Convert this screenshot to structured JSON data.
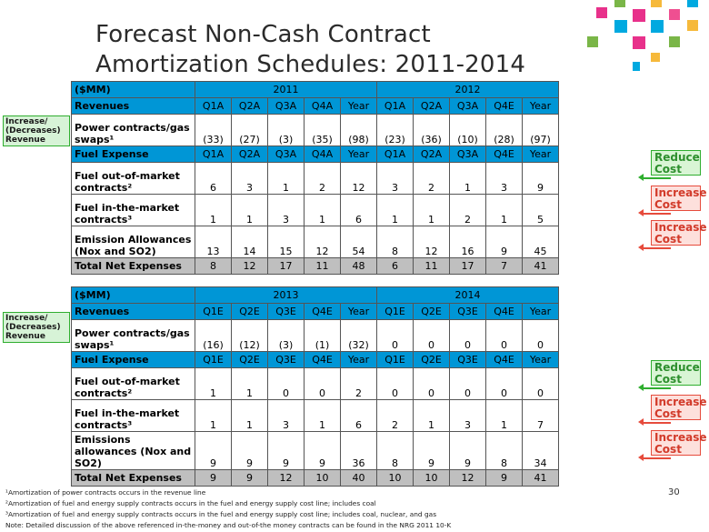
{
  "title_lines": [
    "Forecast Non-Cash Contract",
    "Amortization Schedules: 2011-2014"
  ],
  "tables": [
    {
      "unit": "($MM)",
      "year_a": "2011",
      "year_b": "2012",
      "revenue_header": [
        "Revenues",
        "Q1A",
        "Q2A",
        "Q3A",
        "Q4A",
        "Year",
        "Q1A",
        "Q2A",
        "Q3A",
        "Q4E",
        "Year"
      ],
      "revenue_row": {
        "label": "Power contracts/gas swaps¹",
        "values": [
          "(33)",
          "(27)",
          "(3)",
          "(35)",
          "(98)",
          "(23)",
          "(36)",
          "(10)",
          "(28)",
          "(97)"
        ]
      },
      "fuel_header": [
        "Fuel Expense",
        "Q1A",
        "Q2A",
        "Q3A",
        "Q4A",
        "Year",
        "Q1A",
        "Q2A",
        "Q3A",
        "Q4E",
        "Year"
      ],
      "fuel_rows": [
        {
          "label": "Fuel out-of-market contracts²",
          "values": [
            "6",
            "3",
            "1",
            "2",
            "12",
            "3",
            "2",
            "1",
            "3",
            "9"
          ]
        },
        {
          "label": "Fuel in-the-market contracts³",
          "values": [
            "1",
            "1",
            "3",
            "1",
            "6",
            "1",
            "1",
            "2",
            "1",
            "5"
          ]
        },
        {
          "label": "Emission Allowances (Nox and SO2)",
          "values": [
            "13",
            "14",
            "15",
            "12",
            "54",
            "8",
            "12",
            "16",
            "9",
            "45"
          ]
        }
      ],
      "total_row": {
        "label": "Total Net Expenses",
        "values": [
          "8",
          "12",
          "17",
          "11",
          "48",
          "6",
          "11",
          "17",
          "7",
          "41"
        ]
      }
    },
    {
      "unit": "($MM)",
      "year_a": "2013",
      "year_b": "2014",
      "revenue_header": [
        "Revenues",
        "Q1E",
        "Q2E",
        "Q3E",
        "Q4E",
        "Year",
        "Q1E",
        "Q2E",
        "Q3E",
        "Q4E",
        "Year"
      ],
      "revenue_row": {
        "label": "Power contracts/gas swaps¹",
        "values": [
          "(16)",
          "(12)",
          "(3)",
          "(1)",
          "(32)",
          "0",
          "0",
          "0",
          "0",
          "0"
        ]
      },
      "fuel_header": [
        "Fuel Expense",
        "Q1E",
        "Q2E",
        "Q3E",
        "Q4E",
        "Year",
        "Q1E",
        "Q2E",
        "Q3E",
        "Q4E",
        "Year"
      ],
      "fuel_rows": [
        {
          "label": "Fuel out-of-market contracts²",
          "values": [
            "1",
            "1",
            "0",
            "0",
            "2",
            "0",
            "0",
            "0",
            "0",
            "0"
          ]
        },
        {
          "label": "Fuel in-the-market contracts³",
          "values": [
            "1",
            "1",
            "3",
            "1",
            "6",
            "2",
            "1",
            "3",
            "1",
            "7"
          ]
        },
        {
          "label": "Emissions allowances (Nox and SO2)",
          "values": [
            "9",
            "9",
            "9",
            "9",
            "36",
            "8",
            "9",
            "9",
            "8",
            "34"
          ]
        }
      ],
      "total_row": {
        "label": "Total Net Expenses",
        "values": [
          "9",
          "9",
          "12",
          "10",
          "40",
          "10",
          "10",
          "12",
          "9",
          "41"
        ]
      }
    }
  ],
  "side_label": "Increase/ (Decreases) Revenue",
  "tags": {
    "reduce": "Reduce Cost",
    "increase": "Increase Cost"
  },
  "footnotes": [
    "¹Amortization of power contracts occurs in the revenue line",
    "²Amortization of fuel and energy supply contracts occurs in the fuel and energy supply cost line; includes coal",
    "³Amortization of fuel and energy supply contracts occurs in the fuel and energy supply cost line; includes coal, nuclear, and gas",
    "Note: Detailed discussion of the above referenced in-the-money and out-of-the money contracts can be found in the NRG 2011 10-K"
  ],
  "page_number": "30",
  "colors": {
    "header_blue": "#0096d6",
    "total_gray": "#bfbfbf",
    "green": "#2fae2f",
    "red": "#e64b3c"
  }
}
